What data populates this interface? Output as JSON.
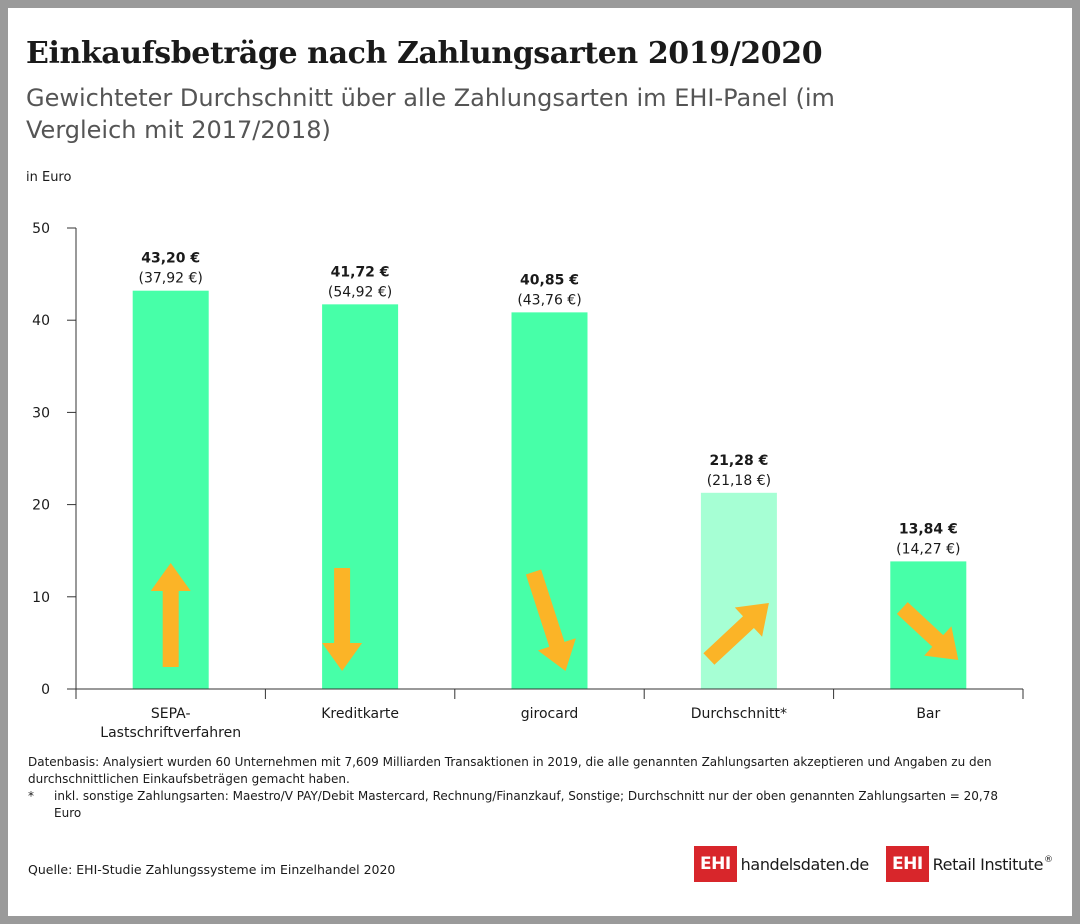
{
  "header": {
    "title": "Einkaufsbeträge nach Zahlungsarten 2019/2020",
    "subtitle": "Gewichteter Durchschnitt über alle Zahlungsarten im EHI-Panel (im Vergleich mit 2017/2018)",
    "unit": "in Euro"
  },
  "chart_data": {
    "type": "bar",
    "ylabel": "in Euro",
    "ylim": [
      0,
      50
    ],
    "yticks": [
      "0",
      "10",
      "20",
      "30",
      "40",
      "50"
    ],
    "grid": false,
    "categories": [
      [
        "SEPA-",
        "Lastschriftverfahren"
      ],
      [
        "Kreditkarte"
      ],
      [
        "girocard"
      ],
      [
        "Durchschnitt*"
      ],
      [
        "Bar"
      ]
    ],
    "values": [
      43.2,
      41.72,
      40.85,
      21.28,
      13.84
    ],
    "previous_values": [
      37.92,
      54.92,
      43.76,
      21.18,
      14.27
    ],
    "value_labels": [
      "43,20 €",
      "41,72 €",
      "40,85 €",
      "21,28 €",
      "13,84 €"
    ],
    "previous_labels": [
      "(37,92 €)",
      "(54,92 €)",
      "(43,76 €)",
      "(21,18 €)",
      "(14,27 €)"
    ],
    "trend_arrows": [
      "up",
      "down",
      "down-slight",
      "up-slight",
      "down-diagonal"
    ],
    "colors": {
      "bar": "#47ffa8",
      "bar_average": "#a6ffd4",
      "arrow": "#fbb427",
      "axis": "#333333"
    },
    "highlight_index": 3
  },
  "notes": {
    "basis": "Datenbasis: Analysiert wurden 60 Unternehmen mit 7,609 Milliarden Transaktionen in 2019, die alle genannten Zahlungsarten akzeptieren und Angaben zu den durchschnittlichen Einkaufsbeträgen gemacht haben.",
    "footnote_marker": "*",
    "footnote": "inkl. sonstige Zahlungsarten: Maestro/V PAY/Debit Mastercard, Rechnung/Finanzkauf, Sonstige; Durchschnitt nur der oben genannten Zahlungsarten = 20,78 Euro"
  },
  "source": "Quelle: EHI-Studie Zahlungssysteme im Einzelhandel 2020",
  "logos": {
    "handelsdaten_box": "EHI",
    "handelsdaten_text": "handelsdaten.de",
    "retail_box": "EHI",
    "retail_text": "Retail Institute",
    "retail_mark": "®"
  }
}
